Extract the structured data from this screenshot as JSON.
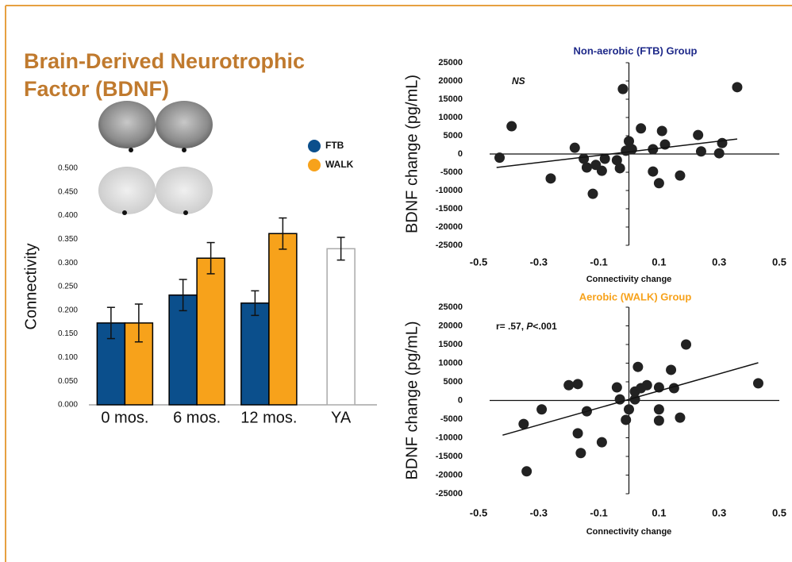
{
  "title": "Brain-Derived Neurotrophic Factor (BDNF)",
  "chart_data": [
    {
      "type": "bar",
      "ylabel": "Connectivity",
      "categories": [
        "0 mos.",
        "6 mos.",
        "12 mos.",
        "YA"
      ],
      "series": [
        {
          "name": "FTB",
          "color": "#0b4f8c",
          "edgecolor": "#000000",
          "values": [
            0.173,
            0.232,
            0.215,
            null
          ],
          "errors": [
            0.033,
            0.033,
            0.026,
            null
          ]
        },
        {
          "name": "WALK",
          "color": "#f7a21b",
          "edgecolor": "#000000",
          "values": [
            0.173,
            0.31,
            0.362,
            null
          ],
          "errors": [
            0.04,
            0.033,
            0.033,
            null
          ]
        },
        {
          "color": "#ffffff",
          "edgecolor": "#aaaaaa",
          "values": [
            null,
            null,
            null,
            0.33
          ],
          "errors": [
            null,
            null,
            null,
            0.024
          ]
        }
      ],
      "ylim": [
        0,
        0.5
      ],
      "yticks": [
        {
          "value": 0,
          "label": "0.000"
        },
        {
          "value": 0.05,
          "label": "0.050"
        },
        {
          "value": 0.1,
          "label": "0.100"
        },
        {
          "value": 0.15,
          "label": "0.150"
        },
        {
          "value": 0.2,
          "label": "0.200"
        },
        {
          "value": 0.25,
          "label": "0.250"
        },
        {
          "value": 0.3,
          "label": "0.300"
        },
        {
          "value": 0.35,
          "label": "0.350"
        },
        {
          "value": 0.4,
          "label": "0.400"
        },
        {
          "value": 0.45,
          "label": "0.450"
        },
        {
          "value": 0.5,
          "label": "0.500"
        }
      ]
    },
    {
      "type": "scatter",
      "title": "Non-aerobic (FTB) Group",
      "title_color": "#1f2a8a",
      "xlabel": "Connectivity change",
      "ylabel": "BDNF change (pg/mL)",
      "annotation": [
        "NS"
      ],
      "annotation_italic": [
        true
      ],
      "color": "#222222",
      "x": [
        -0.43,
        -0.39,
        -0.26,
        -0.18,
        -0.15,
        -0.14,
        -0.12,
        -0.11,
        -0.09,
        -0.08,
        -0.04,
        -0.03,
        -0.01,
        -0.02,
        0.0,
        0.01,
        0.04,
        0.08,
        0.08,
        0.1,
        0.11,
        0.12,
        0.17,
        0.23,
        0.24,
        0.3,
        0.31,
        0.36
      ],
      "y": [
        -1000,
        7600,
        -6700,
        1700,
        -1300,
        -3700,
        -10900,
        -3000,
        -4600,
        -1300,
        -1700,
        -3900,
        900,
        17800,
        3500,
        1300,
        7000,
        1300,
        -4800,
        -8000,
        6300,
        2600,
        -5900,
        5200,
        700,
        200,
        3000,
        18300
      ],
      "fit": {
        "x": [
          -0.44,
          0.36
        ],
        "y": [
          -3700,
          4100
        ]
      },
      "xlim": [
        -0.5,
        0.5
      ],
      "xticks": [
        -0.5,
        -0.3,
        -0.1,
        0.1,
        0.3,
        0.5
      ],
      "ylim": [
        -25000,
        25000
      ],
      "yticks": [
        25000,
        20000,
        15000,
        10000,
        5000,
        0,
        -5000,
        -10000,
        -15000,
        -20000,
        -25000
      ]
    },
    {
      "type": "scatter",
      "title": "Aerobic (WALK) Group",
      "title_color": "#f7a21b",
      "xlabel": "Connectivity change",
      "ylabel": "BDNF change (pg/mL)",
      "annotation": [
        "r= .57, ",
        "P",
        "<.001"
      ],
      "annotation_italic": [
        false,
        true,
        false
      ],
      "color": "#222222",
      "x": [
        -0.35,
        -0.34,
        -0.29,
        -0.2,
        -0.17,
        -0.17,
        -0.16,
        -0.14,
        -0.09,
        -0.04,
        -0.03,
        -0.01,
        0.0,
        0.02,
        0.02,
        0.03,
        0.04,
        0.06,
        0.1,
        0.1,
        0.1,
        0.14,
        0.15,
        0.17,
        0.19,
        0.43
      ],
      "y": [
        -6300,
        -19000,
        -2400,
        4100,
        4400,
        -8800,
        -14100,
        -2900,
        -11200,
        3500,
        300,
        -5200,
        -2400,
        2400,
        300,
        9000,
        3300,
        4100,
        -2400,
        -5400,
        3500,
        8200,
        3300,
        -4600,
        15000,
        4600
      ],
      "fit": {
        "x": [
          -0.42,
          0.43
        ],
        "y": [
          -9300,
          10100
        ]
      },
      "xlim": [
        -0.5,
        0.5
      ],
      "xticks": [
        -0.5,
        -0.3,
        -0.1,
        0.1,
        0.3,
        0.5
      ],
      "ylim": [
        -25000,
        25000
      ],
      "yticks": [
        25000,
        20000,
        15000,
        10000,
        5000,
        0,
        -5000,
        -10000,
        -15000,
        -20000,
        -25000
      ]
    }
  ]
}
